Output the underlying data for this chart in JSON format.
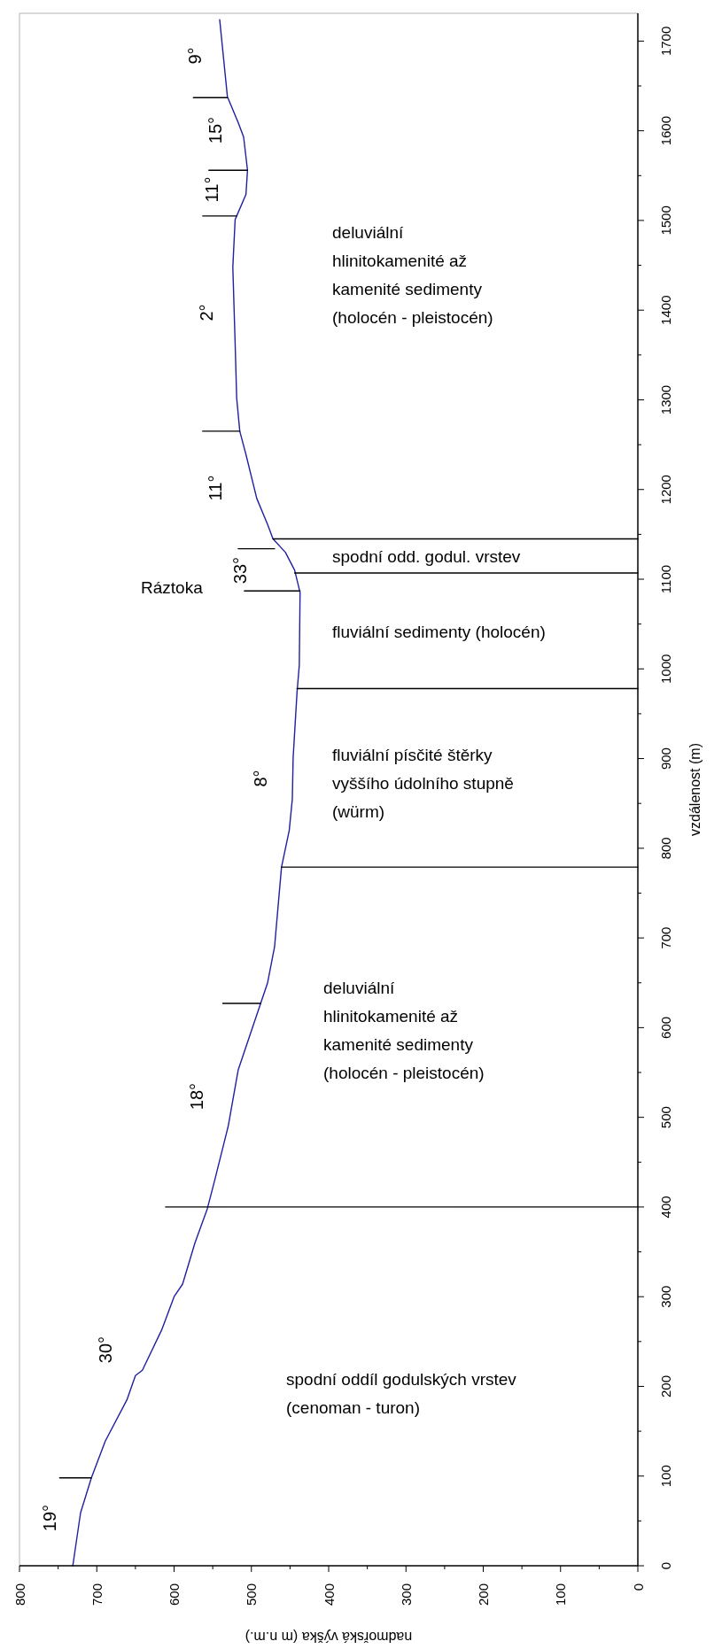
{
  "chart_data": {
    "type": "line",
    "xlabel": "nadmořská výška (m n.m.)",
    "ylabel": "vzdálenost (m)",
    "xlim": [
      800,
      0
    ],
    "ylim": [
      0,
      1731
    ],
    "yticks": [
      0,
      {
        "value": 50,
        "label": null
      },
      100,
      {
        "value": 150,
        "label": null
      },
      200,
      {
        "value": 250,
        "label": null
      },
      300,
      {
        "value": 350,
        "label": null
      },
      400,
      {
        "value": 450,
        "label": null
      },
      500,
      {
        "value": 550,
        "label": null
      },
      600,
      {
        "value": 650,
        "label": null
      },
      700,
      {
        "value": 750,
        "label": null
      },
      800,
      {
        "value": 850,
        "label": null
      },
      900,
      {
        "value": 950,
        "label": null
      },
      1000,
      {
        "value": 1050,
        "label": null
      },
      1100,
      {
        "value": 1150,
        "label": null
      },
      1200,
      {
        "value": 1250,
        "label": null
      },
      1300,
      {
        "value": 1350,
        "label": null
      },
      1400,
      {
        "value": 1450,
        "label": null
      },
      1500,
      {
        "value": 1550,
        "label": null
      },
      1600,
      {
        "value": 1650,
        "label": null
      },
      1700
    ],
    "xticks": [
      800,
      {
        "value": 750,
        "label": null
      },
      700,
      {
        "value": 650,
        "label": null
      },
      600,
      {
        "value": 550,
        "label": null
      },
      500,
      {
        "value": 450,
        "label": null
      },
      400,
      {
        "value": 350,
        "label": null
      },
      300,
      {
        "value": 250,
        "label": null
      },
      200,
      {
        "value": 150,
        "label": null
      },
      100,
      {
        "value": 50,
        "label": null
      },
      0
    ],
    "grid": false,
    "marker": "none",
    "line_style": "solid",
    "series": [
      {
        "color": "#2020a0",
        "x": [
          731,
          721,
          707,
          689,
          661,
          650,
          641,
          616,
          600,
          589,
          573,
          557,
          548,
          530,
          517,
          488,
          479,
          470,
          461,
          451,
          447,
          446,
          441,
          438,
          437,
          444,
          456,
          472,
          479,
          493,
          507,
          515,
          519,
          521,
          524,
          521,
          519,
          507,
          505,
          510,
          517,
          531,
          541
        ],
        "values": [
          0,
          59,
          98,
          139,
          185,
          212,
          218,
          263,
          300,
          314,
          360,
          398,
          428,
          490,
          553,
          627,
          650,
          690,
          779,
          820,
          855,
          900,
          973,
          1004,
          1085,
          1110,
          1130,
          1145,
          1161,
          1190,
          1239,
          1265,
          1302,
          1363,
          1448,
          1501,
          1505,
          1529,
          1556,
          1593,
          1609,
          1638,
          1724
        ]
      },
      {
        "color": "#000000",
        "x": [
          0,
          611
        ],
        "values": [
          400,
          400
        ]
      },
      {
        "color": "#000000",
        "x": [
          0,
          461
        ],
        "values": [
          779,
          779
        ]
      },
      {
        "color": "#000000",
        "x": [
          0,
          441
        ],
        "values": [
          978,
          978
        ]
      },
      {
        "color": "#000000",
        "x": [
          0,
          444
        ],
        "values": [
          1107,
          1107
        ]
      },
      {
        "color": "#000000",
        "x": [
          0,
          472
        ],
        "values": [
          1145,
          1145
        ]
      },
      {
        "color": "#000000",
        "x": [
          748,
          707
        ],
        "values": [
          98,
          98
        ]
      },
      {
        "color": "#000000",
        "x": [
          537,
          488
        ],
        "values": [
          627,
          627
        ]
      },
      {
        "color": "#000000",
        "x": [
          509,
          437
        ],
        "values": [
          1087,
          1087
        ]
      },
      {
        "color": "#000000",
        "x": [
          517,
          470
        ],
        "values": [
          1134,
          1134
        ]
      },
      {
        "color": "#000000",
        "x": [
          563,
          515
        ],
        "values": [
          1265,
          1265
        ]
      },
      {
        "color": "#000000",
        "x": [
          563,
          519
        ],
        "values": [
          1505,
          1505
        ]
      },
      {
        "color": "#000000",
        "x": [
          555,
          505
        ],
        "values": [
          1556,
          1556
        ]
      },
      {
        "color": "#000000",
        "x": [
          575,
          531
        ],
        "values": [
          1637,
          1637
        ]
      }
    ],
    "annotations": [
      "19°",
      "30°",
      "18°",
      "8°",
      "33°",
      "11°",
      "2°",
      "11°",
      "15°",
      "9°",
      "Ráztoka",
      "deluviální\nhlinitokamenité až\nkamenité sedimenty\n(holocén - pleistocén)",
      "spodní odd. godul. vrstev",
      "fluviální sedimenty (holocén)",
      "fluviální písčité štěrky\nvyššího údolního stupně\n(würm)",
      "deluviální\nhlinitokamenité až\nkamenité sedimenty\n(holocén - pleistocén)",
      "spodní oddíl godulských vrstev\n(cenoman - turon)"
    ]
  }
}
